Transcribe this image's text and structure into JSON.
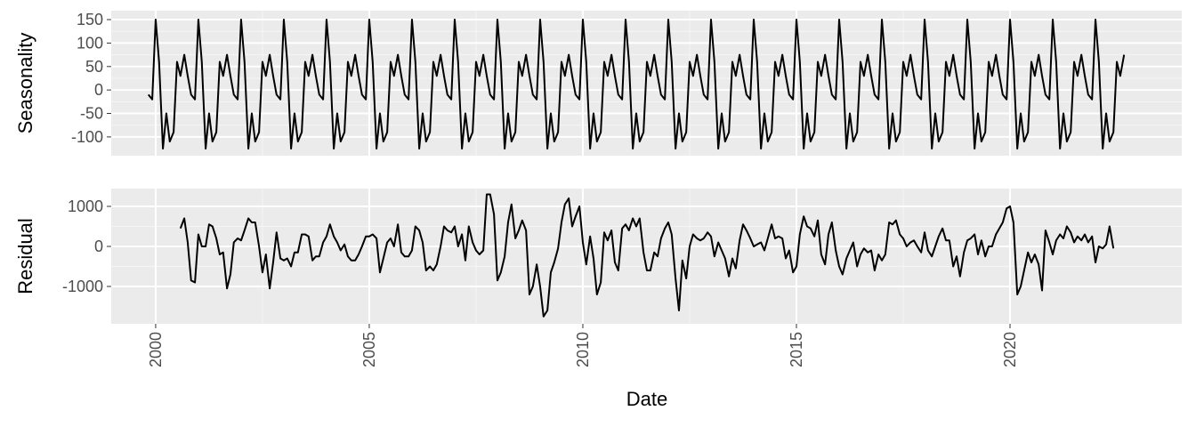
{
  "chart_data": {
    "type": "line",
    "x_label": "Date",
    "xlim": [
      1998.96,
      2024.02
    ],
    "xticks": [
      2000,
      2005,
      2010,
      2015,
      2020
    ],
    "grid": true,
    "color": "#000000",
    "x": [
      1999.83,
      1999.92,
      2000.0,
      2000.08,
      2000.17,
      2000.25,
      2000.33,
      2000.42,
      2000.5,
      2000.58,
      2000.67,
      2000.75,
      2000.83,
      2000.92,
      2001.0,
      2001.08,
      2001.17,
      2001.25,
      2001.33,
      2001.42,
      2001.5,
      2001.58,
      2001.67,
      2001.75,
      2001.83,
      2001.92,
      2002.0,
      2002.08,
      2002.17,
      2002.25,
      2002.33,
      2002.42,
      2002.5,
      2002.58,
      2002.67,
      2002.75,
      2002.83,
      2002.92,
      2003.0,
      2003.08,
      2003.17,
      2003.25,
      2003.33,
      2003.42,
      2003.5,
      2003.58,
      2003.67,
      2003.75,
      2003.83,
      2003.92,
      2004.0,
      2004.08,
      2004.17,
      2004.25,
      2004.33,
      2004.42,
      2004.5,
      2004.58,
      2004.67,
      2004.75,
      2004.83,
      2004.92,
      2005.0,
      2005.08,
      2005.17,
      2005.25,
      2005.33,
      2005.42,
      2005.5,
      2005.58,
      2005.67,
      2005.75,
      2005.83,
      2005.92,
      2006.0,
      2006.08,
      2006.17,
      2006.25,
      2006.33,
      2006.42,
      2006.5,
      2006.58,
      2006.67,
      2006.75,
      2006.83,
      2006.92,
      2007.0,
      2007.08,
      2007.17,
      2007.25,
      2007.33,
      2007.42,
      2007.5,
      2007.58,
      2007.67,
      2007.75,
      2007.83,
      2007.92,
      2008.0,
      2008.08,
      2008.17,
      2008.25,
      2008.33,
      2008.42,
      2008.5,
      2008.58,
      2008.67,
      2008.75,
      2008.83,
      2008.92,
      2009.0,
      2009.08,
      2009.17,
      2009.25,
      2009.33,
      2009.42,
      2009.5,
      2009.58,
      2009.67,
      2009.75,
      2009.83,
      2009.92,
      2010.0,
      2010.08,
      2010.17,
      2010.25,
      2010.33,
      2010.42,
      2010.5,
      2010.58,
      2010.67,
      2010.75,
      2010.83,
      2010.92,
      2011.0,
      2011.08,
      2011.17,
      2011.25,
      2011.33,
      2011.42,
      2011.5,
      2011.58,
      2011.67,
      2011.75,
      2011.83,
      2011.92,
      2012.0,
      2012.08,
      2012.17,
      2012.25,
      2012.33,
      2012.42,
      2012.5,
      2012.58,
      2012.67,
      2012.75,
      2012.83,
      2012.92,
      2013.0,
      2013.08,
      2013.17,
      2013.25,
      2013.33,
      2013.42,
      2013.5,
      2013.58,
      2013.67,
      2013.75,
      2013.83,
      2013.92,
      2014.0,
      2014.08,
      2014.17,
      2014.25,
      2014.33,
      2014.42,
      2014.5,
      2014.58,
      2014.67,
      2014.75,
      2014.83,
      2014.92,
      2015.0,
      2015.08,
      2015.17,
      2015.25,
      2015.33,
      2015.42,
      2015.5,
      2015.58,
      2015.67,
      2015.75,
      2015.83,
      2015.92,
      2016.0,
      2016.08,
      2016.17,
      2016.25,
      2016.33,
      2016.42,
      2016.5,
      2016.58,
      2016.67,
      2016.75,
      2016.83,
      2016.92,
      2017.0,
      2017.08,
      2017.17,
      2017.25,
      2017.33,
      2017.42,
      2017.5,
      2017.58,
      2017.67,
      2017.75,
      2017.83,
      2017.92,
      2018.0,
      2018.08,
      2018.17,
      2018.25,
      2018.33,
      2018.42,
      2018.5,
      2018.58,
      2018.67,
      2018.75,
      2018.83,
      2018.92,
      2019.0,
      2019.08,
      2019.17,
      2019.25,
      2019.33,
      2019.42,
      2019.5,
      2019.58,
      2019.67,
      2019.75,
      2019.83,
      2019.92,
      2020.0,
      2020.08,
      2020.17,
      2020.25,
      2020.33,
      2020.42,
      2020.5,
      2020.58,
      2020.67,
      2020.75,
      2020.83,
      2020.92,
      2021.0,
      2021.08,
      2021.17,
      2021.25,
      2021.33,
      2021.42,
      2021.5,
      2021.58,
      2021.67,
      2021.75,
      2021.83,
      2021.92,
      2022.0,
      2022.08,
      2022.17,
      2022.25,
      2022.33,
      2022.42,
      2022.5,
      2022.58,
      2022.67
    ],
    "series": [
      {
        "name": "Seasonality",
        "ylim": [
          -140,
          169
        ],
        "yticks": [
          -100,
          -50,
          0,
          50,
          100,
          150
        ],
        "values": [
          -10,
          -20,
          150,
          60,
          -125,
          -50,
          -110,
          -90,
          60,
          30,
          75,
          30,
          -10,
          -20,
          150,
          60,
          -125,
          -50,
          -110,
          -90,
          60,
          30,
          75,
          30,
          -10,
          -20,
          150,
          60,
          -125,
          -50,
          -110,
          -90,
          60,
          30,
          75,
          30,
          -10,
          -20,
          150,
          60,
          -125,
          -50,
          -110,
          -90,
          60,
          30,
          75,
          30,
          -10,
          -20,
          150,
          60,
          -125,
          -50,
          -110,
          -90,
          60,
          30,
          75,
          30,
          -10,
          -20,
          150,
          60,
          -125,
          -50,
          -110,
          -90,
          60,
          30,
          75,
          30,
          -10,
          -20,
          150,
          60,
          -125,
          -50,
          -110,
          -90,
          60,
          30,
          75,
          30,
          -10,
          -20,
          150,
          60,
          -125,
          -50,
          -110,
          -90,
          60,
          30,
          75,
          30,
          -10,
          -20,
          150,
          60,
          -125,
          -50,
          -110,
          -90,
          60,
          30,
          75,
          30,
          -10,
          -20,
          150,
          60,
          -125,
          -50,
          -110,
          -90,
          60,
          30,
          75,
          30,
          -10,
          -20,
          150,
          60,
          -125,
          -50,
          -110,
          -90,
          60,
          30,
          75,
          30,
          -10,
          -20,
          150,
          60,
          -125,
          -50,
          -110,
          -90,
          60,
          30,
          75,
          30,
          -10,
          -20,
          150,
          60,
          -125,
          -50,
          -110,
          -90,
          60,
          30,
          75,
          30,
          -10,
          -20,
          150,
          60,
          -125,
          -50,
          -110,
          -90,
          60,
          30,
          75,
          30,
          -10,
          -20,
          150,
          60,
          -125,
          -50,
          -110,
          -90,
          60,
          30,
          75,
          30,
          -10,
          -20,
          150,
          60,
          -125,
          -50,
          -110,
          -90,
          60,
          30,
          75,
          30,
          -10,
          -20,
          150,
          60,
          -125,
          -50,
          -110,
          -90,
          60,
          30,
          75,
          30,
          -10,
          -20,
          150,
          60,
          -125,
          -50,
          -110,
          -90,
          60,
          30,
          75,
          30,
          -10,
          -20,
          150,
          60,
          -125,
          -50,
          -110,
          -90,
          60,
          30,
          75,
          30,
          -10,
          -20,
          150,
          60,
          -125,
          -50,
          -110,
          -90,
          60,
          30,
          75,
          30,
          -10,
          -20,
          150,
          60,
          -125,
          -50,
          -110,
          -90,
          60,
          30,
          75,
          30,
          -10,
          -20,
          150,
          60,
          -125,
          -50,
          -110,
          -90,
          60,
          30,
          75,
          30,
          -10,
          -20,
          150,
          60,
          -125,
          -50,
          -110,
          -90,
          60,
          30,
          75
        ]
      },
      {
        "name": "Residual",
        "ylim": [
          -1933,
          1444
        ],
        "yticks": [
          -1000,
          0,
          1000
        ],
        "values": [
          null,
          null,
          null,
          null,
          null,
          null,
          null,
          null,
          null,
          450,
          700,
          100,
          -850,
          -900,
          300,
          0,
          0,
          550,
          500,
          200,
          -200,
          -150,
          -1050,
          -700,
          100,
          200,
          150,
          400,
          700,
          600,
          600,
          0,
          -650,
          -200,
          -1050,
          -400,
          350,
          -300,
          -350,
          -300,
          -500,
          -150,
          -150,
          300,
          300,
          250,
          -350,
          -250,
          -250,
          100,
          250,
          550,
          250,
          100,
          -100,
          50,
          -250,
          -350,
          -350,
          -200,
          0,
          250,
          250,
          300,
          200,
          -650,
          -300,
          100,
          200,
          0,
          550,
          -150,
          -250,
          -250,
          -100,
          500,
          400,
          100,
          -600,
          -500,
          -600,
          -450,
          0,
          500,
          400,
          350,
          500,
          0,
          300,
          -350,
          500,
          100,
          -100,
          -200,
          -100,
          1300,
          1300,
          800,
          -850,
          -650,
          -250,
          600,
          1050,
          200,
          400,
          650,
          400,
          -1200,
          -1000,
          -450,
          -1000,
          -1750,
          -1600,
          -650,
          -400,
          -50,
          600,
          1050,
          1200,
          500,
          750,
          1000,
          100,
          -450,
          250,
          -300,
          -1200,
          -900,
          350,
          150,
          400,
          -400,
          -600,
          450,
          550,
          400,
          700,
          500,
          700,
          -150,
          -600,
          -600,
          -150,
          -250,
          200,
          450,
          600,
          300,
          -800,
          -1600,
          -350,
          -800,
          0,
          300,
          200,
          150,
          200,
          350,
          250,
          -250,
          100,
          -100,
          -300,
          -750,
          -300,
          -550,
          150,
          550,
          400,
          200,
          0,
          50,
          100,
          -100,
          200,
          550,
          200,
          250,
          200,
          -300,
          -100,
          -650,
          -500,
          300,
          750,
          500,
          450,
          250,
          650,
          -200,
          -450,
          300,
          600,
          -100,
          -500,
          -700,
          -300,
          -100,
          100,
          -500,
          -200,
          -50,
          -150,
          -100,
          -600,
          -200,
          -350,
          -200,
          600,
          550,
          650,
          300,
          200,
          0,
          100,
          150,
          0,
          -150,
          350,
          -100,
          -250,
          0,
          250,
          450,
          150,
          150,
          -500,
          -250,
          -750,
          -150,
          150,
          200,
          300,
          -200,
          150,
          -250,
          0,
          0,
          300,
          450,
          600,
          950,
          1000,
          600,
          -1200,
          -1000,
          -600,
          -150,
          -400,
          -200,
          -450,
          -1100,
          400,
          100,
          -200,
          150,
          300,
          200,
          500,
          350,
          100,
          250,
          150,
          300,
          100,
          250,
          -400,
          0,
          -50,
          50,
          500,
          -50,
          null,
          null,
          null
        ]
      }
    ]
  }
}
